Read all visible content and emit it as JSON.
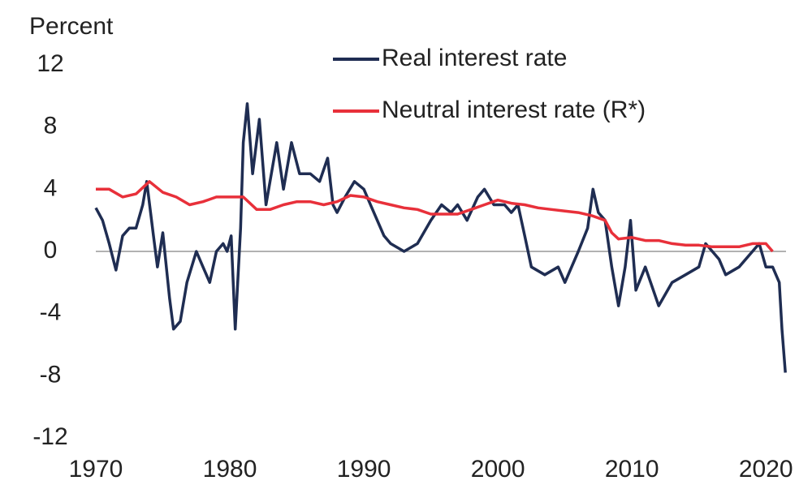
{
  "chart_data": {
    "type": "line",
    "y_axis_label": "Percent",
    "xlim": [
      1970,
      2021.5
    ],
    "xticks": [
      1970,
      1980,
      1990,
      2000,
      2010,
      2020
    ],
    "ylim": [
      -12,
      12
    ],
    "yticks": [
      -12,
      -8,
      -4,
      0,
      4,
      8,
      12
    ],
    "zero_line": true,
    "series": [
      {
        "name": "Real interest rate",
        "color": "#1f2d52",
        "x": [
          1970,
          1970.5,
          1971,
          1971.5,
          1972,
          1972.5,
          1973,
          1973.5,
          1973.8,
          1974.3,
          1974.6,
          1975,
          1975.5,
          1975.8,
          1976.3,
          1976.8,
          1977.5,
          1978,
          1978.5,
          1979,
          1979.5,
          1979.8,
          1980.1,
          1980.4,
          1980.8,
          1981,
          1981.3,
          1981.7,
          1982.2,
          1982.7,
          1983.5,
          1984,
          1984.6,
          1985.2,
          1986,
          1986.7,
          1987.3,
          1987.7,
          1988,
          1988.6,
          1989.3,
          1990,
          1990.5,
          1991,
          1991.5,
          1992,
          1993,
          1994,
          1995,
          1995.8,
          1996.5,
          1997,
          1997.7,
          1998.5,
          1999,
          1999.7,
          2000.5,
          2001,
          2001.5,
          2002,
          2002.5,
          2003.5,
          2004.5,
          2005,
          2006,
          2006.7,
          2007.1,
          2007.5,
          2008,
          2008.5,
          2009,
          2009.5,
          2009.9,
          2010.3,
          2011,
          2012,
          2013,
          2014,
          2015,
          2015.5,
          2016.5,
          2017,
          2018,
          2019,
          2019.5,
          2020,
          2020.5,
          2021,
          2021.2,
          2021.45
        ],
        "values": [
          2.8,
          2,
          0.5,
          -1.2,
          1,
          1.5,
          1.5,
          3,
          4.5,
          1,
          -1,
          1.2,
          -3,
          -5,
          -4.5,
          -2,
          0,
          -1,
          -2,
          0,
          0.5,
          0,
          1,
          -5,
          1.5,
          7,
          9.5,
          5,
          8.5,
          3,
          7,
          4,
          7,
          5,
          5,
          4.5,
          6,
          3,
          2.5,
          3.5,
          4.5,
          4,
          3,
          2,
          1,
          0.5,
          0,
          0.5,
          2,
          3,
          2.5,
          3,
          2,
          3.5,
          4,
          3,
          3,
          2.5,
          3,
          1,
          -1,
          -1.5,
          -1,
          -2,
          0,
          1.5,
          4,
          2.5,
          2,
          -1,
          -3.5,
          -1,
          2,
          -2.5,
          -1,
          -3.5,
          -2,
          -1.5,
          -1,
          0.5,
          -0.5,
          -1.5,
          -1,
          0,
          0.5,
          -1,
          -1,
          -2,
          -5,
          -7.8
        ]
      },
      {
        "name": "Neutral interest rate (R*)",
        "color": "#e8303a",
        "x": [
          1970,
          1971,
          1972,
          1973,
          1974,
          1975,
          1976,
          1977,
          1978,
          1979,
          1980,
          1981,
          1982,
          1983,
          1984,
          1985,
          1986,
          1987,
          1988,
          1989,
          1990,
          1991,
          1992,
          1993,
          1994,
          1995,
          1996,
          1997,
          1998,
          1999,
          2000,
          2001,
          2002,
          2003,
          2004,
          2005,
          2006,
          2007,
          2008,
          2008.5,
          2009,
          2010,
          2011,
          2012,
          2013,
          2014,
          2015,
          2016,
          2017,
          2018,
          2019,
          2020,
          2020.5
        ],
        "values": [
          4,
          4,
          3.5,
          3.7,
          4.5,
          3.8,
          3.5,
          3,
          3.2,
          3.5,
          3.5,
          3.5,
          2.7,
          2.7,
          3,
          3.2,
          3.2,
          3,
          3.2,
          3.6,
          3.5,
          3.2,
          3,
          2.8,
          2.7,
          2.4,
          2.4,
          2.4,
          2.7,
          3,
          3.3,
          3.1,
          3,
          2.8,
          2.7,
          2.6,
          2.5,
          2.3,
          2,
          1.2,
          0.8,
          0.9,
          0.7,
          0.7,
          0.5,
          0.4,
          0.4,
          0.3,
          0.3,
          0.3,
          0.5,
          0.5,
          0
        ]
      }
    ]
  }
}
